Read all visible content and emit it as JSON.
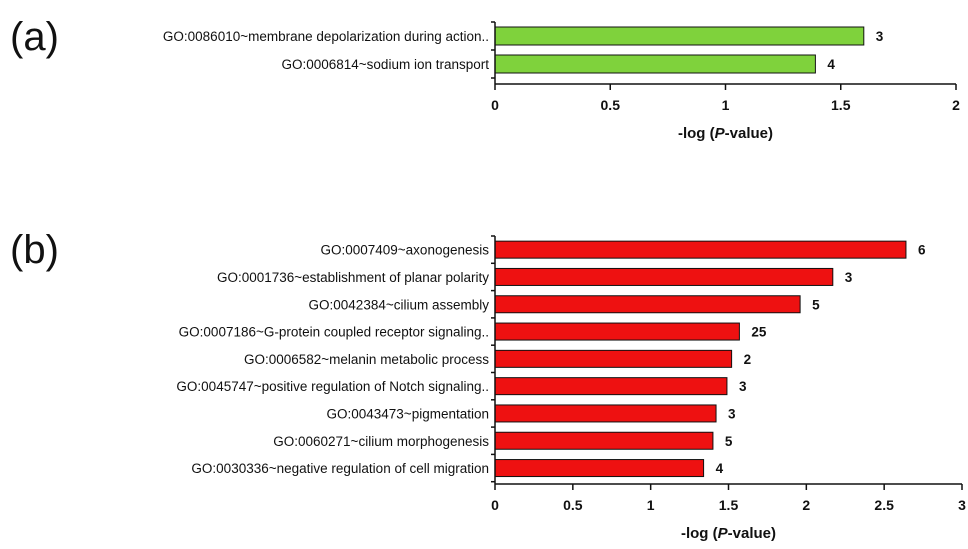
{
  "chart_data": [
    {
      "type": "bar",
      "orientation": "horizontal",
      "panel_label": "(a)",
      "categories": [
        "GO:0086010~membrane depolarization during action..",
        "GO:0006814~sodium ion transport"
      ],
      "values": [
        1.6,
        1.39
      ],
      "data_labels": [
        "3",
        "4"
      ],
      "xlabel_prefix": "-log (",
      "xlabel_italic": "P",
      "xlabel_suffix": "-value)",
      "xlim": [
        0,
        2
      ],
      "xticks": [
        "0",
        "0.5",
        "1",
        "1.5",
        "2"
      ],
      "color": "#7fd23c",
      "grid": false
    },
    {
      "type": "bar",
      "orientation": "horizontal",
      "panel_label": "(b)",
      "categories": [
        "GO:0007409~axonogenesis",
        "GO:0001736~establishment of planar polarity",
        "GO:0042384~cilium assembly",
        "GO:0007186~G-protein coupled receptor signaling..",
        "GO:0006582~melanin metabolic process",
        "GO:0045747~positive regulation of Notch signaling..",
        "GO:0043473~pigmentation",
        "GO:0060271~cilium morphogenesis",
        "GO:0030336~negative regulation of cell migration"
      ],
      "values": [
        2.64,
        2.17,
        1.96,
        1.57,
        1.52,
        1.49,
        1.42,
        1.4,
        1.34
      ],
      "data_labels": [
        "6",
        "3",
        "5",
        "25",
        "2",
        "3",
        "3",
        "5",
        "4"
      ],
      "xlabel_prefix": "-log (",
      "xlabel_italic": "P",
      "xlabel_suffix": "-value)",
      "xlim": [
        0,
        3
      ],
      "xticks": [
        "0",
        "0.5",
        "1",
        "1.5",
        "2",
        "2.5",
        "3"
      ],
      "color": "#ee1111",
      "grid": false
    }
  ]
}
